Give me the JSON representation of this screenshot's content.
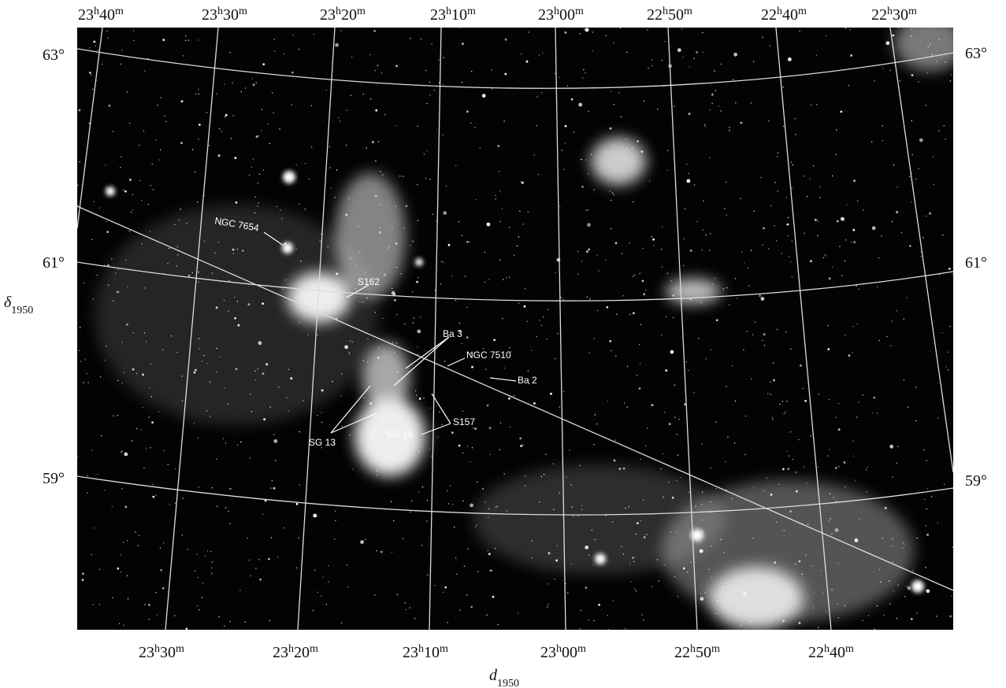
{
  "top_axis": {
    "labels": [
      "23h40m",
      "23h30m",
      "23h20m",
      "23h10m",
      "23h00m",
      "22h50m",
      "22h40m",
      "22h30m"
    ]
  },
  "bottom_axis": {
    "labels": [
      "23h30m",
      "23h20m",
      "23h10m",
      "23h00m",
      "22h50m",
      "22h40m"
    ],
    "title": "d1950"
  },
  "left_axis": {
    "labels": [
      "63°",
      "61°",
      "59°"
    ],
    "title": "δ1950"
  },
  "right_axis": {
    "labels": [
      "63°",
      "61°",
      "59°"
    ]
  },
  "annotations": [
    "NGC 7654",
    "S162",
    "Ba 3",
    "NGC 7510",
    "Ba 2",
    "S157",
    "SG 13",
    "SG 14"
  ]
}
